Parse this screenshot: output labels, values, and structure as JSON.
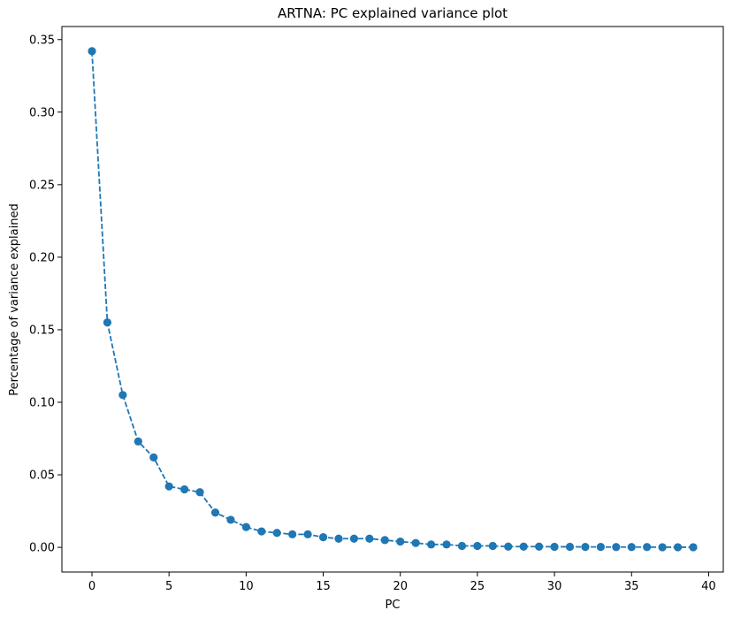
{
  "chart_data": {
    "type": "line",
    "title": "ARTNA: PC explained variance plot",
    "xlabel": "PC",
    "ylabel": "Percentage of variance explained",
    "xlim": [
      -1.95,
      40.95
    ],
    "ylim": [
      -0.017,
      0.359
    ],
    "xticks": [
      0,
      5,
      10,
      15,
      20,
      25,
      30,
      35,
      40
    ],
    "xtick_labels": [
      "0",
      "5",
      "10",
      "15",
      "20",
      "25",
      "30",
      "35",
      "40"
    ],
    "yticks": [
      0.0,
      0.05,
      0.1,
      0.15,
      0.2,
      0.25,
      0.3,
      0.35
    ],
    "ytick_labels": [
      "0.00",
      "0.05",
      "0.10",
      "0.15",
      "0.20",
      "0.25",
      "0.30",
      "0.35"
    ],
    "grid": false,
    "line_style": "dashed",
    "marker": "circle",
    "color": "#1f77b4",
    "series": [
      {
        "x": [
          0,
          1,
          2,
          3,
          4,
          5,
          6,
          7,
          8,
          9,
          10,
          11,
          12,
          13,
          14,
          15,
          16,
          17,
          18,
          19,
          20,
          21,
          22,
          23,
          24,
          25,
          26,
          27,
          28,
          29,
          30,
          31,
          32,
          33,
          34,
          35,
          36,
          37,
          38,
          39
        ],
        "values": [
          0.342,
          0.155,
          0.105,
          0.073,
          0.062,
          0.042,
          0.04,
          0.038,
          0.024,
          0.019,
          0.014,
          0.011,
          0.01,
          0.009,
          0.009,
          0.007,
          0.006,
          0.006,
          0.006,
          0.005,
          0.004,
          0.003,
          0.002,
          0.002,
          0.001,
          0.001,
          0.001,
          0.0005,
          0.0005,
          0.0005,
          0.0004,
          0.0004,
          0.0003,
          0.0003,
          0.0002,
          0.0002,
          0.0002,
          0.0001,
          0.0001,
          0.0001
        ]
      }
    ]
  }
}
